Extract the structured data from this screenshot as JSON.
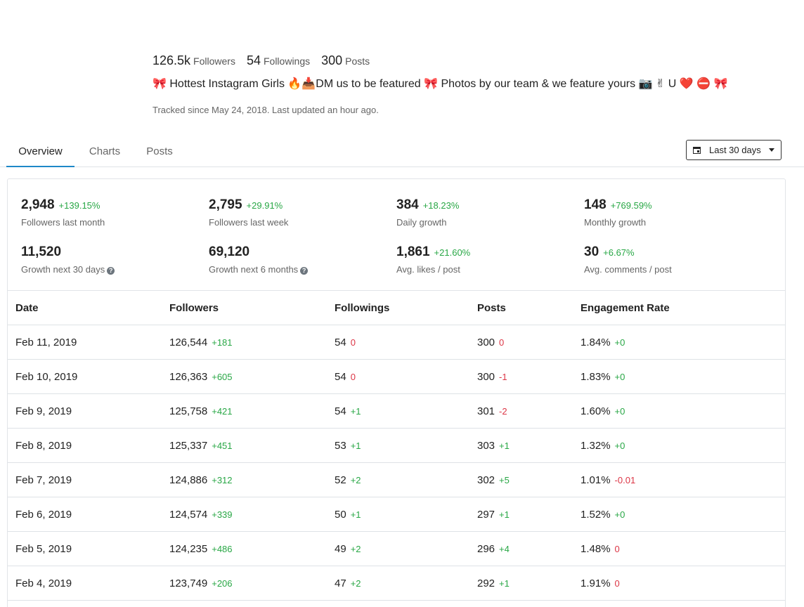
{
  "profile": {
    "followers_value": "126.5k",
    "followers_label": "Followers",
    "followings_value": "54",
    "followings_label": "Followings",
    "posts_value": "300",
    "posts_label": "Posts",
    "bio": "🎀 Hottest Instagram Girls 🔥📥DM us to be featured 🎀 Photos by our team & we feature yours 📷 ✌ U ❤️ ⛔ 🎀",
    "tracked": "Tracked since May 24, 2018. Last updated an hour ago."
  },
  "tabs": [
    {
      "label": "Overview",
      "active": true
    },
    {
      "label": "Charts",
      "active": false
    },
    {
      "label": "Posts",
      "active": false
    }
  ],
  "range": {
    "label": "Last 30 days",
    "icon": "calendar-icon"
  },
  "colors": {
    "positive": "#28a745",
    "negative": "#dc3545",
    "accent": "#1e88c8"
  },
  "metrics": [
    {
      "value": "2,948",
      "delta": "+139.15%",
      "label": "Followers last month",
      "help": false
    },
    {
      "value": "2,795",
      "delta": "+29.91%",
      "label": "Followers last week",
      "help": false
    },
    {
      "value": "384",
      "delta": "+18.23%",
      "label": "Daily growth",
      "help": false
    },
    {
      "value": "148",
      "delta": "+769.59%",
      "label": "Monthly growth",
      "help": false
    },
    {
      "value": "11,520",
      "delta": "",
      "label": "Growth next 30 days",
      "help": true
    },
    {
      "value": "69,120",
      "delta": "",
      "label": "Growth next 6 months",
      "help": true
    },
    {
      "value": "1,861",
      "delta": "+21.60%",
      "label": "Avg. likes / post",
      "help": false
    },
    {
      "value": "30",
      "delta": "+6.67%",
      "label": "Avg. comments / post",
      "help": false
    }
  ],
  "table": {
    "headers": [
      "Date",
      "Followers",
      "Followings",
      "Posts",
      "Engagement Rate"
    ],
    "rows": [
      {
        "date": "Feb 11, 2019",
        "followers": "126,544",
        "followers_delta": "+181",
        "followings": "54",
        "followings_delta": "0",
        "posts": "300",
        "posts_delta": "0",
        "engagement": "1.84%",
        "engagement_delta": "+0"
      },
      {
        "date": "Feb 10, 2019",
        "followers": "126,363",
        "followers_delta": "+605",
        "followings": "54",
        "followings_delta": "0",
        "posts": "300",
        "posts_delta": "-1",
        "engagement": "1.83%",
        "engagement_delta": "+0"
      },
      {
        "date": "Feb 9, 2019",
        "followers": "125,758",
        "followers_delta": "+421",
        "followings": "54",
        "followings_delta": "+1",
        "posts": "301",
        "posts_delta": "-2",
        "engagement": "1.60%",
        "engagement_delta": "+0"
      },
      {
        "date": "Feb 8, 2019",
        "followers": "125,337",
        "followers_delta": "+451",
        "followings": "53",
        "followings_delta": "+1",
        "posts": "303",
        "posts_delta": "+1",
        "engagement": "1.32%",
        "engagement_delta": "+0"
      },
      {
        "date": "Feb 7, 2019",
        "followers": "124,886",
        "followers_delta": "+312",
        "followings": "52",
        "followings_delta": "+2",
        "posts": "302",
        "posts_delta": "+5",
        "engagement": "1.01%",
        "engagement_delta": "-0.01"
      },
      {
        "date": "Feb 6, 2019",
        "followers": "124,574",
        "followers_delta": "+339",
        "followings": "50",
        "followings_delta": "+1",
        "posts": "297",
        "posts_delta": "+1",
        "engagement": "1.52%",
        "engagement_delta": "+0"
      },
      {
        "date": "Feb 5, 2019",
        "followers": "124,235",
        "followers_delta": "+486",
        "followings": "49",
        "followings_delta": "+2",
        "posts": "296",
        "posts_delta": "+4",
        "engagement": "1.48%",
        "engagement_delta": "0"
      },
      {
        "date": "Feb 4, 2019",
        "followers": "123,749",
        "followers_delta": "+206",
        "followings": "47",
        "followings_delta": "+2",
        "posts": "292",
        "posts_delta": "+1",
        "engagement": "1.91%",
        "engagement_delta": "0"
      }
    ]
  }
}
